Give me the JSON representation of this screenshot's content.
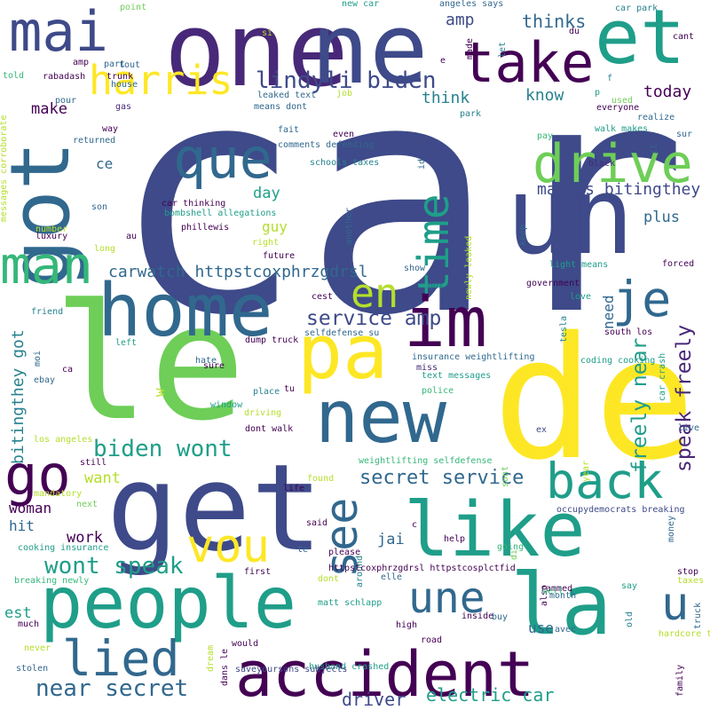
{
  "palette": {
    "purple": "#440154",
    "indigo": "#482878",
    "violet": "#3e4a89",
    "slate": "#31688e",
    "teal": "#26828e",
    "sea": "#1f9e89",
    "green": "#35b779",
    "lime": "#6ece58",
    "chartreuse": "#b5de2b",
    "yellow": "#fde725"
  },
  "words": [
    {
      "text": "car",
      "color": "violet"
    },
    {
      "text": "de",
      "color": "yellow"
    },
    {
      "text": "le",
      "color": "lime"
    },
    {
      "text": "get",
      "color": "violet"
    },
    {
      "text": "people",
      "color": "sea"
    },
    {
      "text": "one",
      "color": "indigo"
    },
    {
      "text": "ne",
      "color": "violet"
    },
    {
      "text": "la",
      "color": "sea"
    },
    {
      "text": "home",
      "color": "slate"
    },
    {
      "text": "new",
      "color": "slate"
    },
    {
      "text": "pa",
      "color": "yellow"
    },
    {
      "text": "like",
      "color": "sea"
    },
    {
      "text": "un",
      "color": "violet"
    },
    {
      "text": "got",
      "color": "slate"
    },
    {
      "text": "accident",
      "color": "purple"
    },
    {
      "text": "et",
      "color": "sea"
    },
    {
      "text": "im",
      "color": "purple"
    },
    {
      "text": "take",
      "color": "purple"
    },
    {
      "text": "mai",
      "color": "violet"
    },
    {
      "text": "man",
      "color": "green"
    },
    {
      "text": "que",
      "color": "slate"
    },
    {
      "text": "drive",
      "color": "lime"
    },
    {
      "text": "harris",
      "color": "yellow"
    },
    {
      "text": "time",
      "color": "sea"
    },
    {
      "text": "go",
      "color": "purple"
    },
    {
      "text": "vou",
      "color": "yellow"
    },
    {
      "text": "une",
      "color": "slate"
    },
    {
      "text": "back",
      "color": "sea"
    },
    {
      "text": "see",
      "color": "slate"
    },
    {
      "text": "lied",
      "color": "slate"
    },
    {
      "text": "je",
      "color": "slate"
    },
    {
      "text": "u",
      "color": "slate"
    },
    {
      "text": "en",
      "color": "chartreuse"
    },
    {
      "text": "lindyli biden",
      "color": "violet"
    },
    {
      "text": "biden wont",
      "color": "sea"
    },
    {
      "text": "wont speak",
      "color": "sea"
    },
    {
      "text": "near secret",
      "color": "slate"
    },
    {
      "text": "speak freely",
      "color": "indigo"
    },
    {
      "text": "freely near",
      "color": "sea"
    },
    {
      "text": "secret service",
      "color": "slate"
    },
    {
      "text": "service amp",
      "color": "violet"
    },
    {
      "text": "electric car",
      "color": "sea"
    },
    {
      "text": "driver",
      "color": "violet"
    },
    {
      "text": "majors bitingthey",
      "color": "violet"
    },
    {
      "text": "carwatch httpstcoxphrzgdrsl",
      "color": "slate"
    },
    {
      "text": "bitingthey got",
      "color": "teal"
    },
    {
      "text": "amp",
      "color": "violet"
    },
    {
      "text": "thinks",
      "color": "slate"
    },
    {
      "text": "think",
      "color": "teal"
    },
    {
      "text": "know",
      "color": "teal"
    },
    {
      "text": "today",
      "color": "purple"
    },
    {
      "text": "plus",
      "color": "slate"
    },
    {
      "text": "day",
      "color": "sea"
    },
    {
      "text": "guy",
      "color": "chartreuse"
    },
    {
      "text": "need",
      "color": "slate"
    },
    {
      "text": "make",
      "color": "purple"
    },
    {
      "text": "ce",
      "color": "slate"
    },
    {
      "text": "est",
      "color": "sea"
    },
    {
      "text": "want",
      "color": "chartreuse"
    },
    {
      "text": "woman",
      "color": "purple"
    },
    {
      "text": "hit",
      "color": "slate"
    },
    {
      "text": "work",
      "color": "purple"
    },
    {
      "text": "jai",
      "color": "slate"
    },
    {
      "text": "use",
      "color": "slate"
    },
    {
      "text": "w",
      "color": "chartreuse"
    },
    {
      "text": "point",
      "color": "lime"
    },
    {
      "text": "new car",
      "color": "sea"
    },
    {
      "text": "angeles says",
      "color": "slate"
    },
    {
      "text": "car park",
      "color": "teal"
    },
    {
      "text": "cant",
      "color": "purple"
    },
    {
      "text": "si",
      "color": "chartreuse"
    },
    {
      "text": "du",
      "color": "purple"
    },
    {
      "text": "f",
      "color": "teal"
    },
    {
      "text": "made",
      "color": "purple"
    },
    {
      "text": "let",
      "color": "teal"
    },
    {
      "text": "e",
      "color": "purple"
    },
    {
      "text": "told",
      "color": "green"
    },
    {
      "text": "part",
      "color": "slate"
    },
    {
      "text": "tout",
      "color": "slate"
    },
    {
      "text": "rabadash",
      "color": "purple"
    },
    {
      "text": "trunk",
      "color": "purple"
    },
    {
      "text": "house",
      "color": "slate"
    },
    {
      "text": "amp",
      "color": "purple"
    },
    {
      "text": "leaked text",
      "color": "slate"
    },
    {
      "text": "job",
      "color": "chartreuse"
    },
    {
      "text": "p",
      "color": "sea"
    },
    {
      "text": "used",
      "color": "lime"
    },
    {
      "text": "everyone",
      "color": "purple"
    },
    {
      "text": "pour",
      "color": "slate"
    },
    {
      "text": "gas",
      "color": "indigo"
    },
    {
      "text": "means dont",
      "color": "slate"
    },
    {
      "text": "park",
      "color": "teal"
    },
    {
      "text": "messages corroborate",
      "color": "chartreuse"
    },
    {
      "text": "way",
      "color": "purple"
    },
    {
      "text": "fait",
      "color": "slate"
    },
    {
      "text": "even",
      "color": "purple"
    },
    {
      "text": "realize",
      "color": "slate"
    },
    {
      "text": "pay",
      "color": "green"
    },
    {
      "text": "sur",
      "color": "slate"
    },
    {
      "text": "il",
      "color": "slate"
    },
    {
      "text": "returned",
      "color": "slate"
    },
    {
      "text": "comments defending",
      "color": "slate"
    },
    {
      "text": "walk makes",
      "color": "sea"
    },
    {
      "text": "schools taxes",
      "color": "teal"
    },
    {
      "text": "id",
      "color": "slate"
    },
    {
      "text": "black",
      "color": "indigo"
    },
    {
      "text": "son",
      "color": "slate"
    },
    {
      "text": "car thinking",
      "color": "purple"
    },
    {
      "text": "bombshell allegations",
      "color": "sea"
    },
    {
      "text": "another",
      "color": "slate"
    },
    {
      "text": "number",
      "color": "chartreuse"
    },
    {
      "text": "luxury",
      "color": "purple"
    },
    {
      "text": "au",
      "color": "purple"
    },
    {
      "text": "phillewis",
      "color": "purple"
    },
    {
      "text": "keep",
      "color": "slate"
    },
    {
      "text": "right",
      "color": "chartreuse"
    },
    {
      "text": "long",
      "color": "chartreuse"
    },
    {
      "text": "future",
      "color": "purple"
    },
    {
      "text": "newly leaked",
      "color": "chartreuse"
    },
    {
      "text": "light means",
      "color": "sea"
    },
    {
      "text": "forced",
      "color": "purple"
    },
    {
      "text": "show",
      "color": "slate"
    },
    {
      "text": "government",
      "color": "purple"
    },
    {
      "text": "qui",
      "color": "slate"
    },
    {
      "text": "friend",
      "color": "teal"
    },
    {
      "text": "cest",
      "color": "purple"
    },
    {
      "text": "love",
      "color": "sea"
    },
    {
      "text": "tesla",
      "color": "teal"
    },
    {
      "text": "moi",
      "color": "slate"
    },
    {
      "text": "selfdefense su",
      "color": "slate"
    },
    {
      "text": "south los",
      "color": "purple"
    },
    {
      "text": "dump truck",
      "color": "purple"
    },
    {
      "text": "left",
      "color": "sea"
    },
    {
      "text": "car crash",
      "color": "sea"
    },
    {
      "text": "insurance weightlifting",
      "color": "slate"
    },
    {
      "text": "coding cooking",
      "color": "sea"
    },
    {
      "text": "hate",
      "color": "slate"
    },
    {
      "text": "miss",
      "color": "indigo"
    },
    {
      "text": "sure",
      "color": "purple"
    },
    {
      "text": "text messages",
      "color": "sea"
    },
    {
      "text": "ebay",
      "color": "slate"
    },
    {
      "text": "ca",
      "color": "purple"
    },
    {
      "text": "tu",
      "color": "purple"
    },
    {
      "text": "place",
      "color": "teal"
    },
    {
      "text": "police",
      "color": "green"
    },
    {
      "text": "window",
      "color": "sea"
    },
    {
      "text": "driving",
      "color": "chartreuse"
    },
    {
      "text": "dont walk",
      "color": "purple"
    },
    {
      "text": "live",
      "color": "slate"
    },
    {
      "text": "ex",
      "color": "violet"
    },
    {
      "text": "los angeles",
      "color": "chartreuse"
    },
    {
      "text": "year",
      "color": "chartreuse"
    },
    {
      "text": "sont",
      "color": "lime"
    },
    {
      "text": "weightlifting selfdefense",
      "color": "green"
    },
    {
      "text": "still",
      "color": "purple"
    },
    {
      "text": "found",
      "color": "chartreuse"
    },
    {
      "text": "mandatory",
      "color": "chartreuse"
    },
    {
      "text": "life",
      "color": "purple"
    },
    {
      "text": "next",
      "color": "lime"
    },
    {
      "text": "occupydemocrats breaking",
      "color": "violet"
    },
    {
      "text": "money",
      "color": "slate"
    },
    {
      "text": "said",
      "color": "purple"
    },
    {
      "text": "c",
      "color": "purple"
    },
    {
      "text": "cooking insurance",
      "color": "sea"
    },
    {
      "text": "help",
      "color": "purple"
    },
    {
      "text": "te",
      "color": "slate"
    },
    {
      "text": "please",
      "color": "purple"
    },
    {
      "text": "going",
      "color": "green"
    },
    {
      "text": "di",
      "color": "lime"
    },
    {
      "text": "around",
      "color": "teal"
    },
    {
      "text": "first",
      "color": "purple"
    },
    {
      "text": "httpstcoxphrzgdrsl httpstcosplctfid",
      "color": "purple"
    },
    {
      "text": "elle",
      "color": "slate"
    },
    {
      "text": "breaking newly",
      "color": "green"
    },
    {
      "text": "dont",
      "color": "chartreuse"
    },
    {
      "text": "also",
      "color": "purple"
    },
    {
      "text": "stop",
      "color": "purple"
    },
    {
      "text": "taxes coding",
      "color": "chartreuse"
    },
    {
      "text": "rammed",
      "color": "purple"
    },
    {
      "text": "say",
      "color": "sea"
    },
    {
      "text": "matt schlapp",
      "color": "sea"
    },
    {
      "text": "well",
      "color": "green"
    },
    {
      "text": "month",
      "color": "slate"
    },
    {
      "text": "truck",
      "color": "slate"
    },
    {
      "text": "much",
      "color": "purple"
    },
    {
      "text": "inside",
      "color": "purple"
    },
    {
      "text": "buy",
      "color": "slate"
    },
    {
      "text": "old",
      "color": "teal"
    },
    {
      "text": "never",
      "color": "chartreuse"
    },
    {
      "text": "high",
      "color": "purple"
    },
    {
      "text": "avec",
      "color": "slate"
    },
    {
      "text": "hardcore trumper",
      "color": "chartreuse"
    },
    {
      "text": "would",
      "color": "purple"
    },
    {
      "text": "road",
      "color": "purple"
    },
    {
      "text": "dream",
      "color": "chartreuse"
    },
    {
      "text": "dans le",
      "color": "purple"
    },
    {
      "text": "stolen",
      "color": "slate"
    },
    {
      "text": "family",
      "color": "purple"
    },
    {
      "text": "husband crashed",
      "color": "sea"
    },
    {
      "text": "saveyoursons subjects",
      "color": "violet"
    }
  ]
}
